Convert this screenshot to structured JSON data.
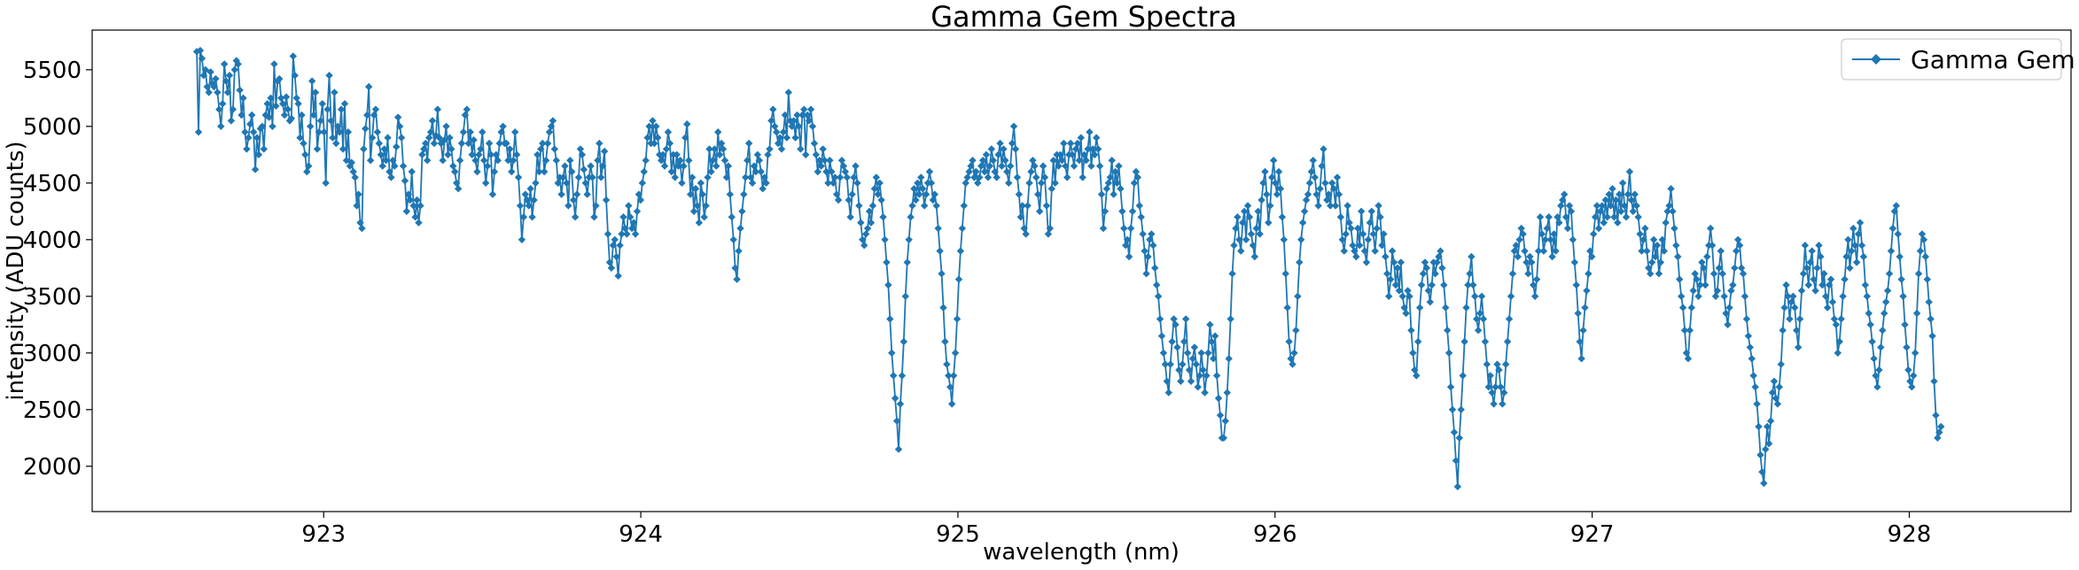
{
  "chart_data": {
    "type": "line",
    "title": "Gamma Gem Spectra",
    "xlabel": "wavelength (nm)",
    "ylabel": "intensity (ADU counts)",
    "xlim": [
      922.27,
      928.51
    ],
    "ylim": [
      1600,
      5850
    ],
    "xticks": [
      923,
      924,
      925,
      926,
      927,
      928
    ],
    "yticks": [
      2000,
      2500,
      3000,
      3500,
      4000,
      4500,
      5000,
      5500
    ],
    "grid": false,
    "legend_position": "top-right",
    "marker": "diamond",
    "series": [
      {
        "name": "Gamma Gem",
        "color": "#1f77b4",
        "x_start": 922.6,
        "x_end": 928.1,
        "values": [
          5660,
          4950,
          5670,
          5600,
          5450,
          5500,
          5350,
          5300,
          5480,
          5380,
          5350,
          5420,
          5300,
          5150,
          5000,
          5200,
          5550,
          5400,
          5300,
          5450,
          5050,
          5150,
          5500,
          5580,
          5550,
          5320,
          5100,
          5250,
          4950,
          4800,
          4900,
          5020,
          5100,
          4950,
          4620,
          4900,
          4750,
          4980,
          5000,
          4800,
          5100,
          5200,
          5080,
          5250,
          5000,
          5550,
          5180,
          5400,
          5420,
          5250,
          5200,
          5100,
          5260,
          5150,
          5050,
          5070,
          5620,
          5450,
          5250,
          5200,
          4900,
          5100,
          4850,
          4750,
          4600,
          4650,
          5000,
          5400,
          5100,
          5300,
          4800,
          4950,
          5050,
          5200,
          4950,
          4500,
          5150,
          5450,
          5050,
          4900,
          5300,
          4850,
          5000,
          4950,
          5150,
          4800,
          5200,
          4700,
          4950,
          4650,
          4680,
          4600,
          4550,
          4300,
          4400,
          4150,
          4100,
          4800,
          4980,
          5100,
          5350,
          4700,
          4900,
          5100,
          5150,
          4950,
          4850,
          4750,
          4650,
          4800,
          4700,
          4900,
          4600,
          4550,
          4700,
          4650,
          4820,
          5080,
          5000,
          4900,
          4650,
          4520,
          4250,
          4400,
          4350,
          4600,
          4300,
          4200,
          4350,
          4150,
          4300,
          4750,
          4800,
          4850,
          4700,
          4900,
          4950,
          5050,
          4850,
          4920,
          5150,
          4900,
          4850,
          4700,
          4880,
          5000,
          4750,
          4900,
          4800,
          4650,
          4600,
          4500,
          4450,
          4700,
          4850,
          4950,
          5100,
          5150,
          4850,
          4950,
          4750,
          4880,
          4700,
          4600,
          4750,
          4800,
          4950,
          4700,
          4500,
          4650,
          4850,
          4750,
          4400,
          4600,
          4750,
          4700,
          4850,
          4950,
          5000,
          4850,
          4850,
          4700,
          4800,
          4600,
          4700,
          4950,
          4750,
          4550,
          4300,
          4000,
          4200,
          4400,
          4350,
          4300,
          4450,
          4200,
          4350,
          4500,
          4750,
          4600,
          4800,
          4850,
          4600,
          4700,
          4850,
          4950,
          5000,
          5050,
          4800,
          4700,
          4500,
          4550,
          4400,
          4550,
          4650,
          4500,
          4300,
          4700,
          4600,
          4350,
          4200,
          4400,
          4550,
          4800,
          4750,
          4620,
          4500,
          4400,
          4550,
          4650,
          4550,
          4200,
          4300,
          4700,
          4850,
          4550,
          4650,
          4780,
          4350,
          4050,
          3800,
          3750,
          3950,
          4000,
          3850,
          3680,
          3950,
          4050,
          4200,
          4100,
          4050,
          4300,
          4200,
          4100,
          4150,
          4050,
          4250,
          4400,
          4350,
          4500,
          4600,
          4700,
          4900,
          5000,
          4850,
          5050,
          4850,
          5000,
          4900,
          4750,
          4700,
          4750,
          4650,
          4800,
          4950,
          4850,
          4600,
          4750,
          4550,
          4750,
          4650,
          4700,
          4500,
          4650,
          4900,
          5020,
          4700,
          4400,
          4550,
          4250,
          4450,
          4300,
          4150,
          4500,
          4400,
          4200,
          4300,
          4550,
          4800,
          4600,
          4700,
          4800,
          4650,
          4950,
          4750,
          4850,
          4800,
          4700,
          4550,
          4650,
          4400,
          4200,
          4000,
          3750,
          3650,
          3900,
          4100,
          4250,
          4400,
          4550,
          4700,
          4850,
          4550,
          4500,
          4650,
          4600,
          4750,
          4700,
          4600,
          4450,
          4550,
          4500,
          4750,
          4800,
          5050,
          5150,
          5000,
          4950,
          4850,
          4900,
          4800,
          4950,
          5100,
          4900,
          5300,
          5050,
          5000,
          5050,
          4900,
          5100,
          5000,
          4800,
          5100,
          5150,
          4750,
          5100,
          5050,
          5150,
          5000,
          4850,
          4750,
          4600,
          4700,
          4650,
          4800,
          4700,
          4600,
          4500,
          4700,
          4600,
          4500,
          4550,
          4400,
          4350,
          4550,
          4700,
          4650,
          4600,
          4550,
          4350,
          4200,
          4400,
          4550,
          4650,
          4500,
          4300,
          4150,
          4000,
          3950,
          4050,
          4100,
          4250,
          4150,
          4300,
          4450,
          4550,
          4400,
          4500,
          4350,
          4200,
          4000,
          3800,
          3600,
          3300,
          3000,
          2800,
          2600,
          2400,
          2150,
          2550,
          2800,
          3100,
          3500,
          3800,
          4000,
          4200,
          4300,
          4450,
          4350,
          4500,
          4400,
          4550,
          4450,
          4300,
          4400,
          4500,
          4600,
          4500,
          4350,
          4400,
          4300,
          4100,
          3900,
          3700,
          3400,
          3100,
          2900,
          2800,
          2700,
          2550,
          2800,
          3000,
          3300,
          3650,
          3900,
          4100,
          4300,
          4500,
          4550,
          4600,
          4650,
          4700,
          4550,
          4600,
          4500,
          4550,
          4650,
          4700,
          4600,
          4750,
          4550,
          4650,
          4800,
          4700,
          4600,
          4550,
          4750,
          4850,
          4650,
          4800,
          4700,
          4600,
          4500,
          4650,
          4850,
          5000,
          4800,
          4550,
          4400,
          4200,
          4300,
          4100,
          4050,
          4300,
          4500,
          4600,
          4700,
          4650,
          4550,
          4400,
          4250,
          4500,
          4650,
          4550,
          4300,
          4050,
          4100,
          4450,
          4700,
          4500,
          4750,
          4650,
          4750,
          4700,
          4850,
          4650,
          4550,
          4750,
          4850,
          4750,
          4650,
          4800,
          4850,
          4700,
          4900,
          4550,
          4750,
          4700,
          4800,
          4950,
          4650,
          4800,
          4750,
          4900,
          4800,
          4650,
          4400,
          4100,
          4250,
          4450,
          4500,
          4550,
          4700,
          4400,
          4600,
          4500,
          4650,
          4450,
          4250,
          4100,
          3950,
          4000,
          3850,
          4100,
          4250,
          4500,
          4600,
          4550,
          4300,
          4200,
          4050,
          3900,
          3700,
          3850,
          4000,
          4050,
          3950,
          3750,
          3600,
          3500,
          3300,
          3150,
          3000,
          2900,
          2750,
          2650,
          2900,
          3100,
          3300,
          3250,
          3050,
          2850,
          2750,
          2900,
          3100,
          3300,
          3000,
          2850,
          2750,
          2950,
          3050,
          2900,
          2700,
          2800,
          3000,
          2850,
          2650,
          2800,
          3000,
          3250,
          3100,
          2950,
          3150,
          2800,
          2600,
          2450,
          2250,
          2250,
          2400,
          2650,
          2950,
          3300,
          3700,
          3950,
          4100,
          4200,
          4000,
          3900,
          4150,
          4250,
          4000,
          4300,
          4200,
          4050,
          3950,
          3850,
          4100,
          4250,
          4050,
          4350,
          4500,
          4600,
          4400,
          4150,
          4300,
          4550,
          4700,
          4500,
          4400,
          4600,
          4450,
          4200,
          4000,
          3700,
          3400,
          3100,
          2950,
          2900,
          3000,
          3200,
          3500,
          3800,
          4000,
          4150,
          4250,
          4350,
          4400,
          4500,
          4600,
          4700,
          4550,
          4400,
          4300,
          4450,
          4650,
          4800,
          4500,
          4350,
          4400,
          4300,
          4500,
          4450,
          4300,
          4550,
          4400,
          4200,
          4000,
          3900,
          4050,
          4300,
          4150,
          4100,
          3950,
          3900,
          3850,
          4100,
          3950,
          4250,
          4050,
          3900,
          3800,
          4000,
          4150,
          4250,
          4050,
          3900,
          4100,
          4300,
          4200,
          3950,
          4050,
          3850,
          3700,
          3500,
          3650,
          3900,
          3800,
          3600,
          3750,
          3550,
          3800,
          3500,
          3400,
          3350,
          3550,
          3500,
          3200,
          3000,
          2850,
          2800,
          3100,
          3400,
          3600,
          3700,
          3800,
          3750,
          3550,
          3450,
          3600,
          3800,
          3700,
          3800,
          3850,
          3900,
          3750,
          3600,
          3400,
          3200,
          3000,
          2700,
          2500,
          2300,
          2050,
          1820,
          2250,
          2500,
          2800,
          3100,
          3400,
          3600,
          3700,
          3850,
          3600,
          3500,
          3300,
          3200,
          3350,
          3500,
          3300,
          3100,
          2900,
          2700,
          2800,
          2650,
          2550,
          2700,
          2900,
          2850,
          2700,
          2550,
          2650,
          2900,
          3100,
          3300,
          3500,
          3700,
          3900,
          3950,
          3850,
          4000,
          4100,
          4050,
          3900,
          3800,
          3700,
          3850,
          3800,
          3600,
          3500,
          3650,
          3900,
          4200,
          4050,
          3900,
          4000,
          4100,
          4200,
          4000,
          3850,
          4050,
          3900,
          4200,
          4150,
          4300,
          4350,
          4400,
          4200,
          4100,
          4300,
          4250,
          4000,
          3800,
          3600,
          3350,
          3100,
          2950,
          3200,
          3400,
          3550,
          3700,
          3900,
          3850,
          4050,
          4200,
          4300,
          4100,
          4250,
          4300,
          4150,
          4350,
          4200,
          4400,
          4300,
          4450,
          4200,
          4350,
          4150,
          4400,
          4250,
          4500,
          4300,
          4200,
          4400,
          4600,
          4350,
          4250,
          4400,
          4300,
          4200,
          4050,
          3900,
          4000,
          4100,
          3900,
          3750,
          3700,
          3800,
          4000,
          3850,
          3950,
          3700,
          3800,
          4000,
          3900,
          4150,
          4250,
          4300,
          4450,
          4250,
          4100,
          3950,
          3850,
          3650,
          3500,
          3400,
          3200,
          3000,
          2950,
          3200,
          3400,
          3550,
          3700,
          3650,
          3500,
          3600,
          3800,
          3750,
          3600,
          3850,
          3950,
          4100,
          3950,
          3700,
          3500,
          3550,
          3750,
          3900,
          3700,
          3500,
          3350,
          3250,
          3400,
          3550,
          3600,
          3750,
          3900,
          4000,
          3950,
          3750,
          3700,
          3500,
          3300,
          3150,
          3050,
          2950,
          2800,
          2700,
          2550,
          2350,
          2100,
          1950,
          1850,
          2150,
          2350,
          2200,
          2400,
          2650,
          2750,
          2600,
          2550,
          2700,
          2900,
          3200,
          3400,
          3600,
          3500,
          3300,
          3450,
          3500,
          3400,
          3200,
          3050,
          3300,
          3550,
          3700,
          3950,
          3750,
          3600,
          3800,
          3900,
          3650,
          3550,
          3750,
          3950,
          3850,
          3600,
          3700,
          3500,
          3400,
          3600,
          3650,
          3450,
          3300,
          3250,
          3000,
          3100,
          3300,
          3500,
          3650,
          3850,
          4000,
          3750,
          3900,
          4100,
          3950,
          3800,
          4050,
          4150,
          3950,
          3850,
          3600,
          3500,
          3350,
          3250,
          3100,
          2950,
          2800,
          2700,
          2850,
          3050,
          3200,
          3350,
          3450,
          3550,
          3700,
          3900,
          4100,
          4250,
          4300,
          4050,
          3850,
          3650,
          3500,
          3250,
          3050,
          2850,
          2750,
          2700,
          2800,
          3000,
          3350,
          3700,
          3900,
          4050,
          4000,
          3850,
          3650,
          3450,
          3300,
          3150,
          2750,
          2450,
          2250,
          2300,
          2350
        ]
      }
    ]
  }
}
